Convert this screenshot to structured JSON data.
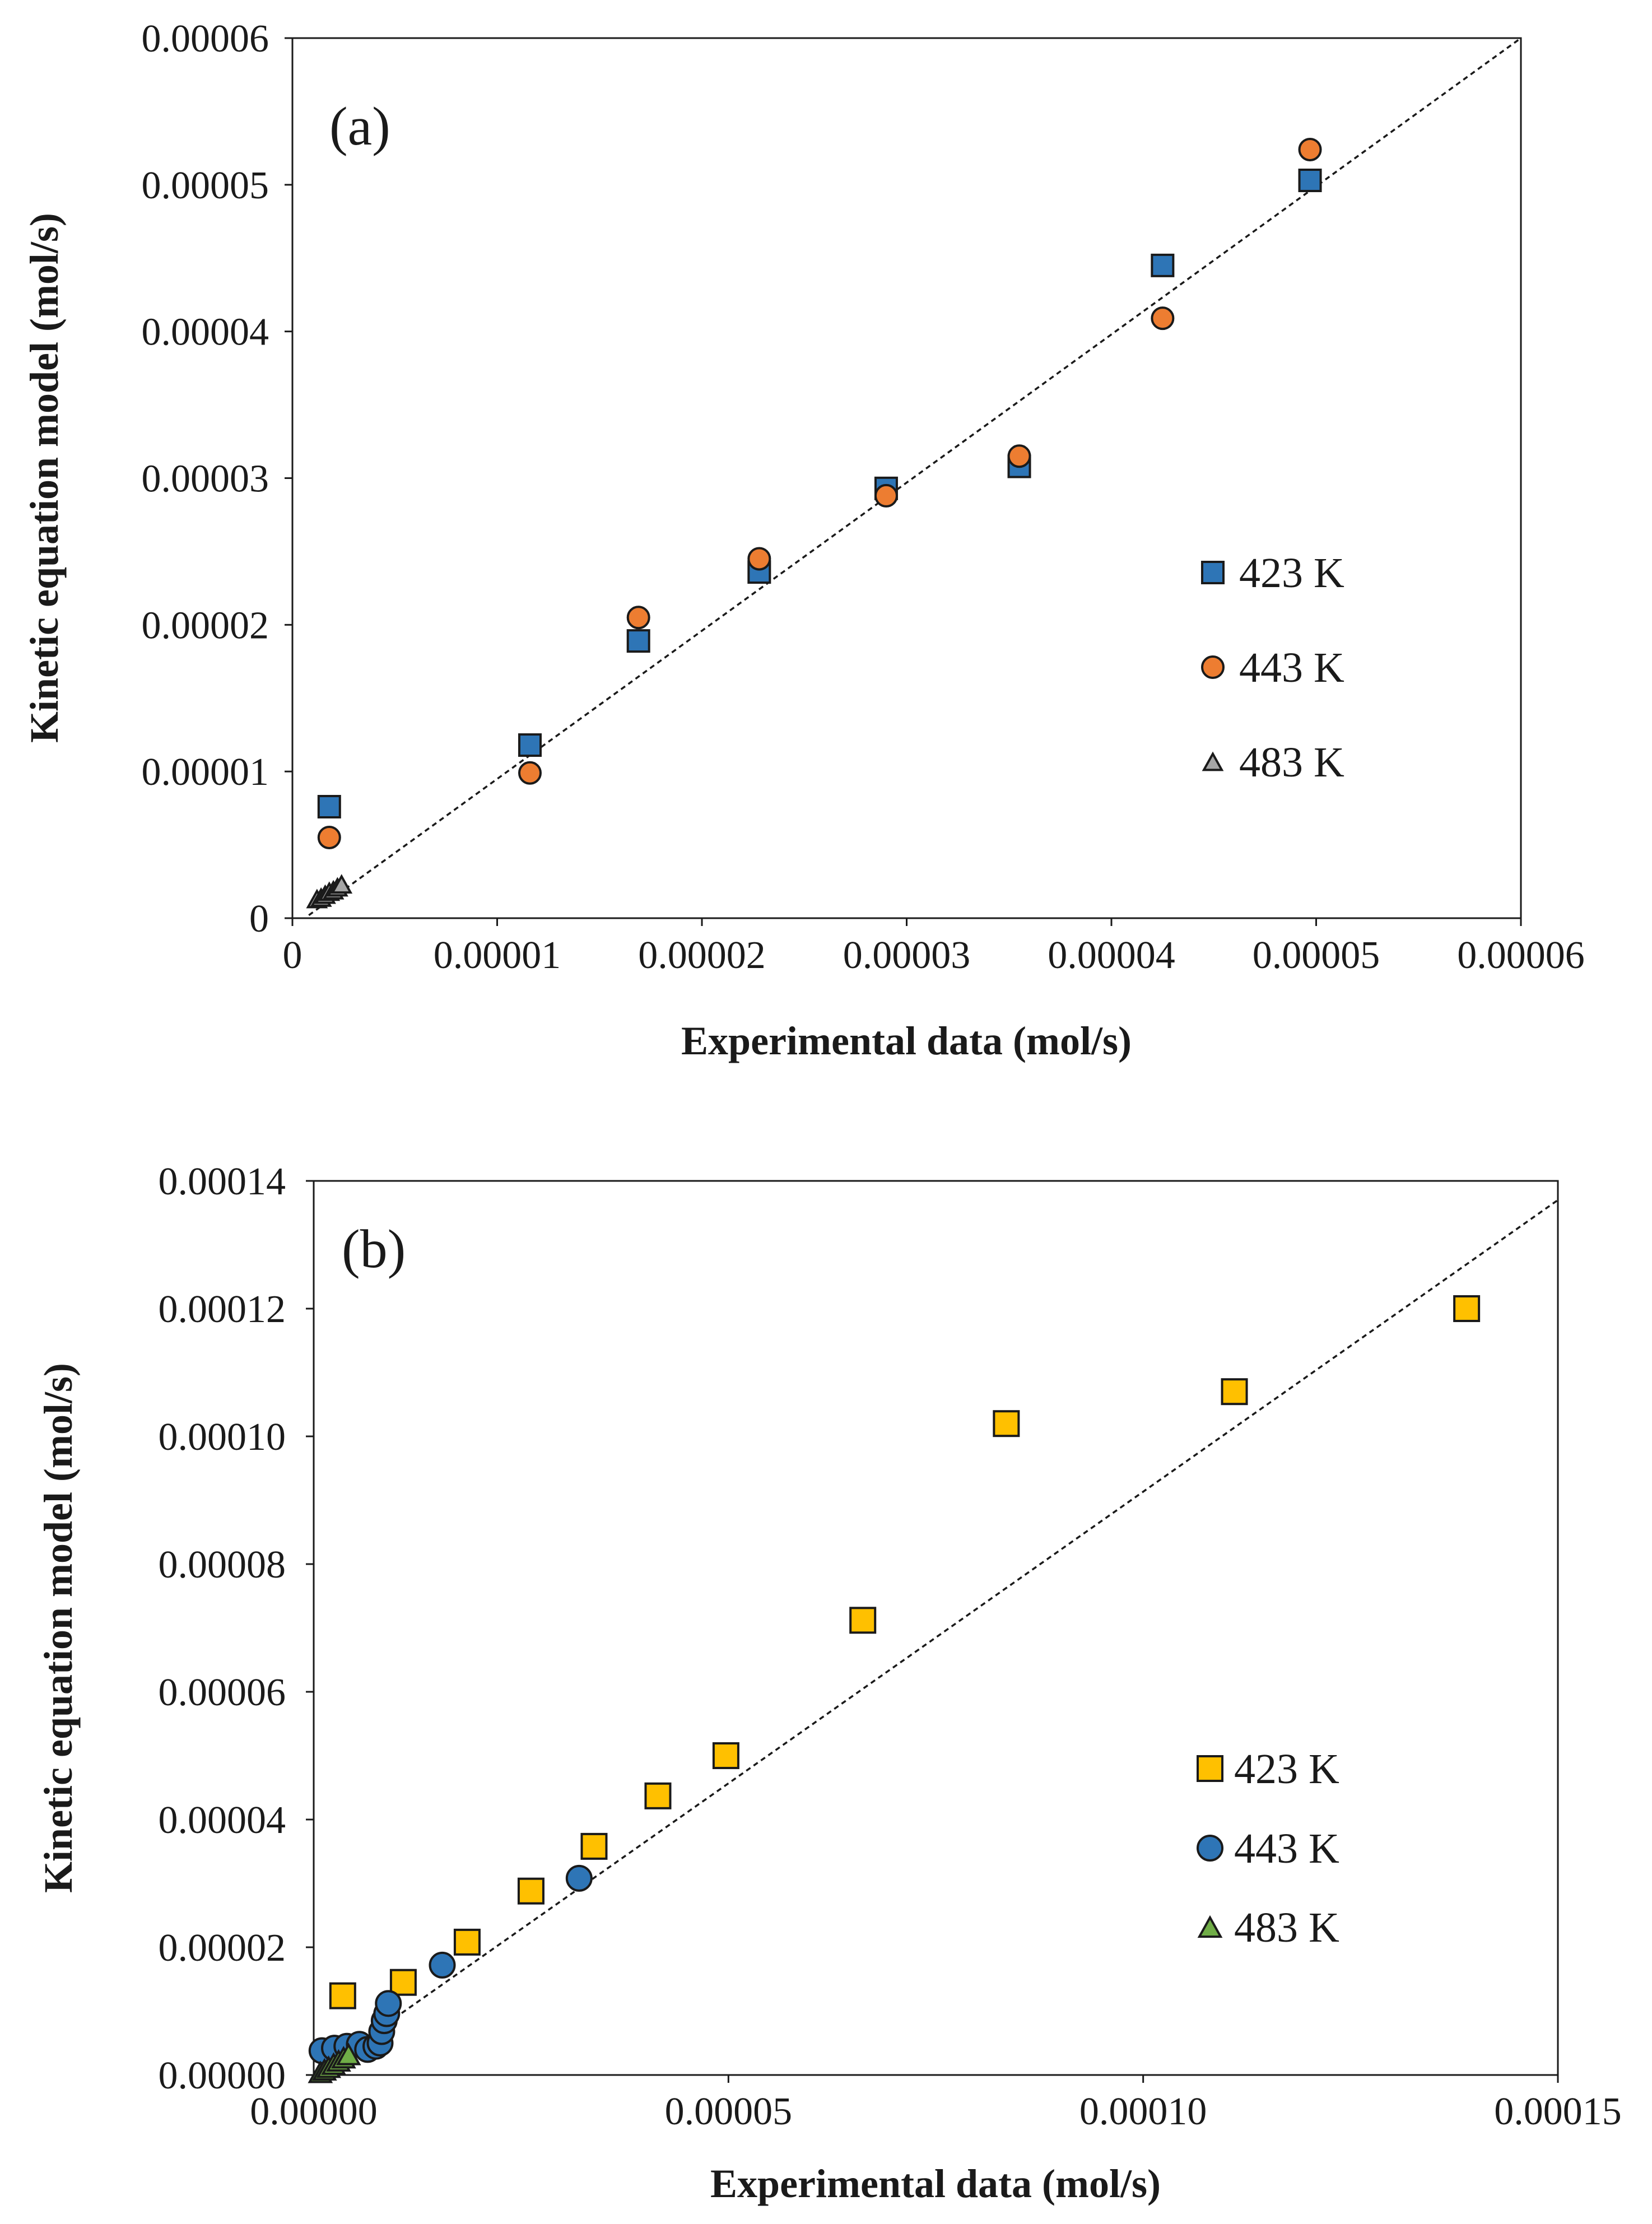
{
  "chart_data": [
    {
      "type": "scatter",
      "panel_label": "(a)",
      "title": "",
      "xlabel": "Experimental data (mol/s)",
      "ylabel": "Kinetic equation model (mol/s)",
      "xlim": [
        0,
        6e-05
      ],
      "ylim": [
        0,
        6e-05
      ],
      "xticks": [
        0,
        1e-05,
        2e-05,
        3e-05,
        4e-05,
        5e-05,
        6e-05
      ],
      "xtick_labels": [
        "0",
        "0.00001",
        "0.00002",
        "0.00003",
        "0.00004",
        "0.00005",
        "0.00006"
      ],
      "yticks": [
        0,
        1e-05,
        2e-05,
        3e-05,
        4e-05,
        5e-05,
        6e-05
      ],
      "ytick_labels": [
        "0",
        "0.00001",
        "0.00002",
        "0.00003",
        "0.00004",
        "0.00005",
        "0.00006"
      ],
      "grid": false,
      "legend_position": "center-right",
      "reference_line": {
        "style": "dashed",
        "from": [
          8e-07,
          2e-07
        ],
        "to": [
          6e-05,
          6e-05
        ]
      },
      "series": [
        {
          "name": "423 K",
          "marker": "square",
          "color": "#2e75b6",
          "x": [
            1.8e-06,
            1.16e-05,
            1.69e-05,
            2.28e-05,
            2.9e-05,
            3.55e-05,
            4.25e-05,
            4.97e-05
          ],
          "y": [
            7.6e-06,
            1.18e-05,
            1.89e-05,
            2.36e-05,
            2.93e-05,
            3.08e-05,
            4.45e-05,
            5.03e-05
          ]
        },
        {
          "name": "443 K",
          "marker": "circle",
          "color": "#ed7d31",
          "x": [
            1.8e-06,
            1.16e-05,
            1.69e-05,
            2.28e-05,
            2.9e-05,
            3.55e-05,
            4.25e-05,
            4.97e-05
          ],
          "y": [
            5.5e-06,
            9.9e-06,
            2.05e-05,
            2.45e-05,
            2.88e-05,
            3.15e-05,
            4.09e-05,
            5.24e-05
          ]
        },
        {
          "name": "483 K",
          "marker": "triangle",
          "color": "#a5a5a5",
          "x": [
            1.2e-06,
            1.4e-06,
            1.6e-06,
            1.8e-06,
            2e-06,
            2.2e-06,
            2.4e-06
          ],
          "y": [
            1.3e-06,
            1.4e-06,
            1.6e-06,
            1.8e-06,
            1.9e-06,
            2.1e-06,
            2.3e-06
          ]
        }
      ]
    },
    {
      "type": "scatter",
      "panel_label": "(b)",
      "title": "",
      "xlabel": "Experimental data (mol/s)",
      "ylabel": "Kinetic equation model  (mol/s)",
      "xlim": [
        0,
        0.00015
      ],
      "ylim": [
        0,
        0.00014
      ],
      "xticks": [
        0,
        5e-05,
        0.0001,
        0.00015
      ],
      "xtick_labels": [
        "0.00000",
        "0.00005",
        "0.00010",
        "0.00015"
      ],
      "yticks": [
        0,
        2e-05,
        4e-05,
        6e-05,
        8e-05,
        0.0001,
        0.00012,
        0.00014
      ],
      "ytick_labels": [
        "0.00000",
        "0.00002",
        "0.00004",
        "0.00006",
        "0.00008",
        "0.00010",
        "0.00012",
        "0.00014"
      ],
      "grid": false,
      "legend_position": "center-right",
      "reference_line": {
        "style": "dashed",
        "from": [
          0,
          0
        ],
        "to": [
          0.00015,
          0.000137
        ]
      },
      "series": [
        {
          "name": "423 K",
          "marker": "square",
          "color": "#ffc000",
          "x": [
            3.5e-06,
            1.08e-05,
            1.85e-05,
            2.62e-05,
            3.38e-05,
            4.15e-05,
            4.97e-05,
            6.62e-05,
            8.35e-05,
            0.000111,
            0.000139
          ],
          "y": [
            1.24e-05,
            1.45e-05,
            2.08e-05,
            2.88e-05,
            3.58e-05,
            4.37e-05,
            5e-05,
            7.12e-05,
            0.000102,
            0.000107,
            0.00012
          ]
        },
        {
          "name": "443 K",
          "marker": "circle",
          "color": "#2e75b6",
          "x": [
            1e-06,
            2.5e-06,
            4e-06,
            5.5e-06,
            6.5e-06,
            7.5e-06,
            8e-06,
            8.2e-06,
            8.5e-06,
            8.8e-06,
            9e-06,
            1.55e-05,
            3.2e-05
          ],
          "y": [
            3.8e-06,
            4.2e-06,
            4.5e-06,
            4.8e-06,
            4e-06,
            4.5e-06,
            5e-06,
            6.8e-06,
            8.5e-06,
            9.6e-06,
            1.12e-05,
            1.72e-05,
            3.08e-05
          ]
        },
        {
          "name": "483 K",
          "marker": "triangle",
          "color": "#70ad47",
          "x": [
            8e-07,
            1.3e-06,
            1.8e-06,
            2.4e-06,
            3e-06,
            3.6e-06,
            4.2e-06
          ],
          "y": [
            4e-07,
            8e-07,
            1.2e-06,
            1.7e-06,
            2.2e-06,
            2.7e-06,
            3.2e-06
          ]
        }
      ]
    }
  ]
}
